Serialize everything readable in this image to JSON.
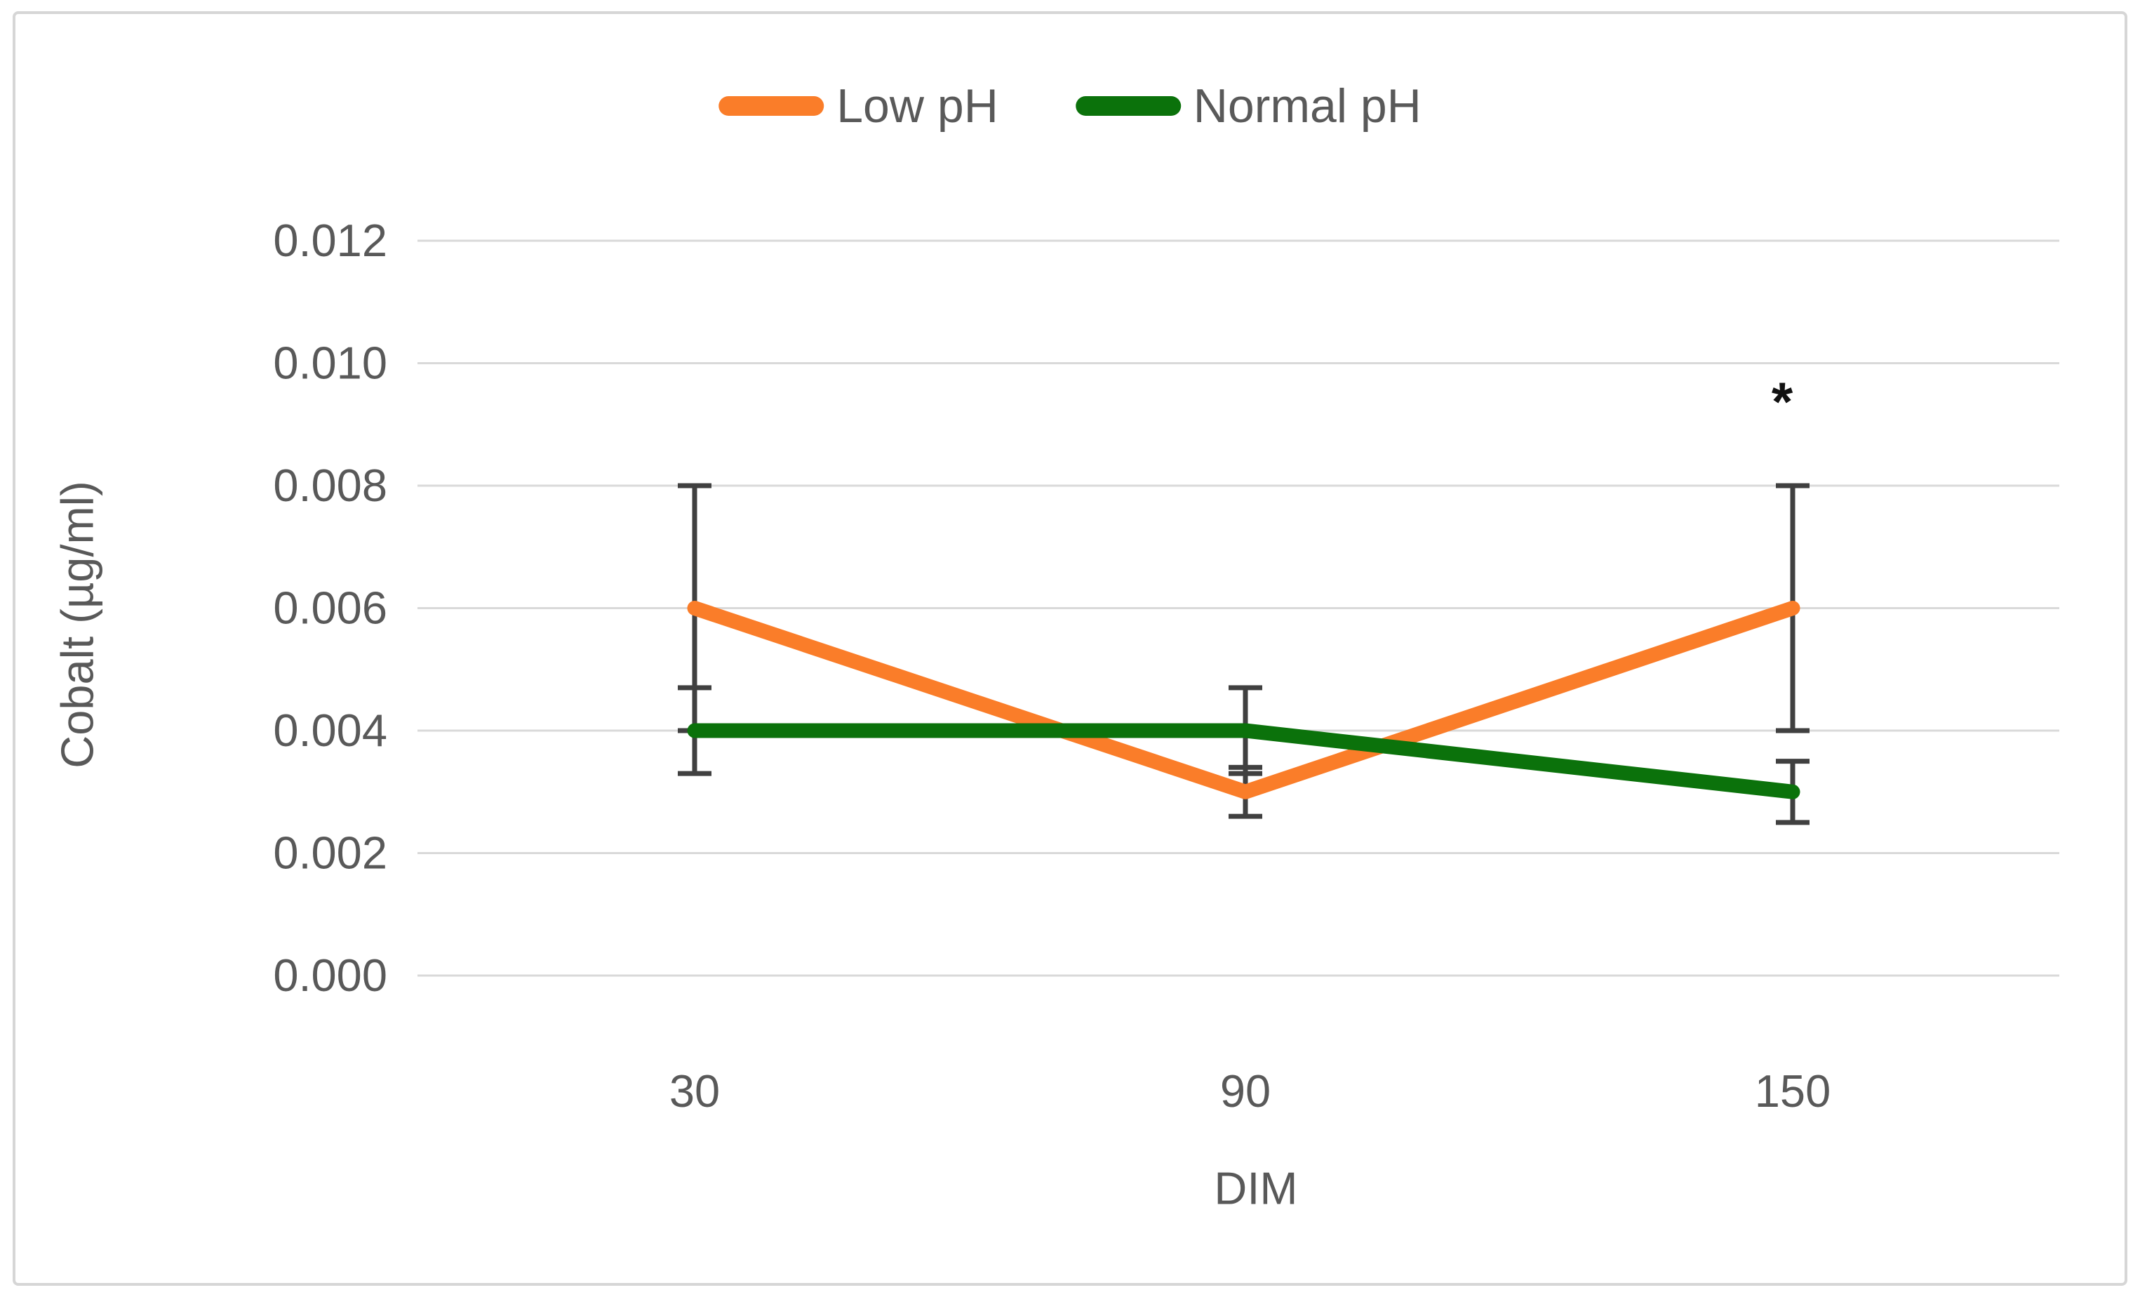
{
  "figure": {
    "background": "#ffffff",
    "frame_border_color": "#d6d6d6"
  },
  "legend": {
    "position": "top-center",
    "items": [
      {
        "label": "Low pH",
        "color": "#FA7D29"
      },
      {
        "label": "Normal pH",
        "color": "#0B720B"
      }
    ]
  },
  "chart_data": {
    "type": "line",
    "title": "",
    "xlabel": "DIM",
    "ylabel": "Cobalt (µg/ml)",
    "categories": [
      "30",
      "90",
      "150"
    ],
    "y_ticks": [
      0,
      0.002,
      0.004,
      0.006,
      0.008,
      0.01,
      0.012
    ],
    "y_tick_labels": [
      "0.000",
      "0.002",
      "0.004",
      "0.006",
      "0.008",
      "0.010",
      "0.012"
    ],
    "ylim": [
      0,
      0.012
    ],
    "grid": "horizontal",
    "legend_position": "top-center",
    "series": [
      {
        "name": "Low pH",
        "color": "#FA7D29",
        "values": [
          0.006,
          0.003,
          0.006
        ],
        "error_bars": [
          {
            "low": 0.004,
            "high": 0.008
          },
          {
            "low": 0.0026,
            "high": 0.0034
          },
          {
            "low": 0.004,
            "high": 0.008
          }
        ]
      },
      {
        "name": "Normal pH",
        "color": "#0B720B",
        "values": [
          0.004,
          0.004,
          0.003
        ],
        "error_bars": [
          {
            "low": 0.0033,
            "high": 0.0047
          },
          {
            "low": 0.0033,
            "high": 0.0047
          },
          {
            "low": 0.0025,
            "high": 0.0035
          }
        ]
      }
    ],
    "annotations": [
      {
        "text": "*",
        "category": "150",
        "value": 0.0095
      }
    ]
  },
  "style": {
    "text_color": "#595959",
    "gridline_color": "#d9d9d9",
    "error_bar_color": "#404040",
    "annotation_color": "#111111"
  }
}
